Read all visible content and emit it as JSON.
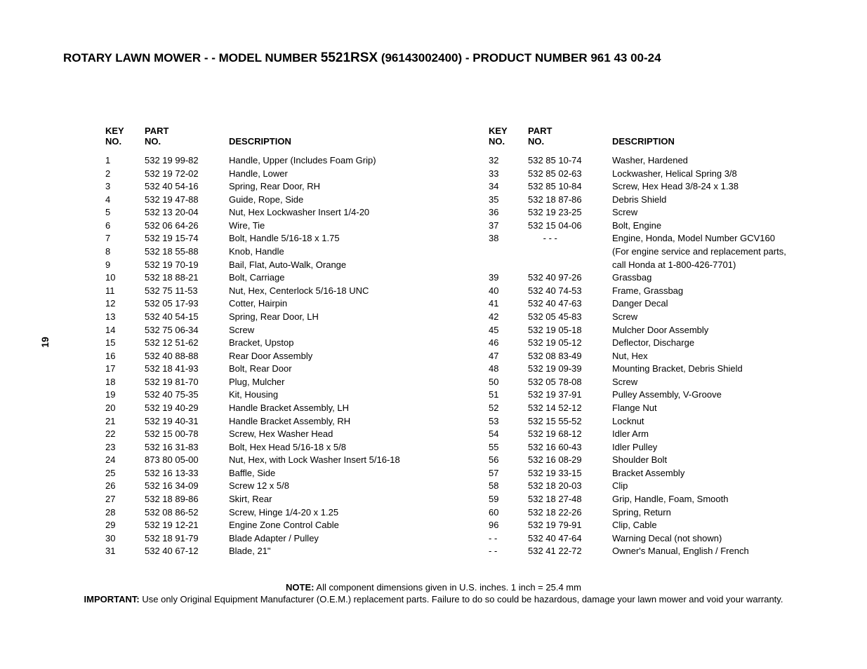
{
  "title": {
    "prefix": "ROTARY LAWN MOWER - - MODEL NUMBER ",
    "model": "5521RSX",
    "suffix": "  (96143002400) - PRODUCT NUMBER 961 43 00-24"
  },
  "page_number": "19",
  "headers": {
    "key_l1": "KEY",
    "key_l2": "NO.",
    "part_l1": "PART",
    "part_l2": "NO.",
    "desc": "DESCRIPTION"
  },
  "left_rows": [
    {
      "key": "1",
      "part": "532 19 99-82",
      "desc": "Handle, Upper (Includes Foam Grip)"
    },
    {
      "key": "2",
      "part": "532 19 72-02",
      "desc": "Handle, Lower"
    },
    {
      "key": "3",
      "part": "532 40 54-16",
      "desc": "Spring, Rear Door, RH"
    },
    {
      "key": "4",
      "part": "532 19 47-88",
      "desc": "Guide, Rope, Side"
    },
    {
      "key": "5",
      "part": "532 13 20-04",
      "desc": "Nut, Hex Lockwasher Insert  1/4-20"
    },
    {
      "key": "6",
      "part": "532 06 64-26",
      "desc": "Wire, Tie"
    },
    {
      "key": "7",
      "part": "532 19 15-74",
      "desc": "Bolt, Handle  5/16-18 x 1.75"
    },
    {
      "key": "8",
      "part": "532 18 55-88",
      "desc": "Knob, Handle"
    },
    {
      "key": "9",
      "part": "532 19 70-19",
      "desc": "Bail, Flat, Auto-Walk, Orange"
    },
    {
      "key": "10",
      "part": "532 18 88-21",
      "desc": "Bolt, Carriage"
    },
    {
      "key": "11",
      "part": "532 75 11-53",
      "desc": "Nut, Hex, Centerlock  5/16-18 UNC"
    },
    {
      "key": "12",
      "part": "532 05 17-93",
      "desc": "Cotter, Hairpin"
    },
    {
      "key": "13",
      "part": "532 40 54-15",
      "desc": "Spring, Rear Door, LH"
    },
    {
      "key": "14",
      "part": "532 75 06-34",
      "desc": "Screw"
    },
    {
      "key": "15",
      "part": "532 12 51-62",
      "desc": "Bracket, Upstop"
    },
    {
      "key": "16",
      "part": "532 40 88-88",
      "desc": "Rear Door Assembly"
    },
    {
      "key": "17",
      "part": "532 18 41-93",
      "desc": "Bolt, Rear Door"
    },
    {
      "key": "18",
      "part": "532 19 81-70",
      "desc": "Plug, Mulcher"
    },
    {
      "key": "19",
      "part": "532 40 75-35",
      "desc": "Kit, Housing"
    },
    {
      "key": "20",
      "part": "532 19 40-29",
      "desc": "Handle Bracket Assembly, LH"
    },
    {
      "key": "21",
      "part": "532 19 40-31",
      "desc": "Handle Bracket Assembly, RH"
    },
    {
      "key": "22",
      "part": "532 15 00-78",
      "desc": "Screw, Hex Washer Head"
    },
    {
      "key": "23",
      "part": "532 16 31-83",
      "desc": "Bolt, Hex Head  5/16-18 x 5/8"
    },
    {
      "key": "24",
      "part": "873 80 05-00",
      "desc": "Nut, Hex, with Lock Washer Insert  5/16-18"
    },
    {
      "key": "25",
      "part": "532 16 13-33",
      "desc": "Baffle, Side"
    },
    {
      "key": "26",
      "part": "532 16 34-09",
      "desc": "Screw  12 x 5/8"
    },
    {
      "key": "27",
      "part": "532 18 89-86",
      "desc": "Skirt, Rear"
    },
    {
      "key": "28",
      "part": "532 08 86-52",
      "desc": "Screw, Hinge  1/4-20 x 1.25"
    },
    {
      "key": "29",
      "part": "532 19 12-21",
      "desc": "Engine Zone Control Cable"
    },
    {
      "key": "30",
      "part": "532 18 91-79",
      "desc": "Blade Adapter / Pulley"
    },
    {
      "key": "31",
      "part": "532 40 67-12",
      "desc": "Blade, 21\""
    }
  ],
  "right_rows": [
    {
      "key": "32",
      "part": "532 85 10-74",
      "desc": "Washer, Hardened"
    },
    {
      "key": "33",
      "part": "532 85 02-63",
      "desc": "Lockwasher, Helical Spring  3/8"
    },
    {
      "key": "34",
      "part": "532 85 10-84",
      "desc": "Screw, Hex Head  3/8-24 x 1.38"
    },
    {
      "key": "35",
      "part": "532 18 87-86",
      "desc": "Debris Shield"
    },
    {
      "key": "36",
      "part": "532 19 23-25",
      "desc": "Screw"
    },
    {
      "key": "37",
      "part": "532 15 04-06",
      "desc": "Bolt, Engine"
    },
    {
      "key": "38",
      "part": "      - - -",
      "desc": "Engine, Honda, Model Number GCV160"
    },
    {
      "key": "",
      "part": "",
      "desc": "(For engine service and replacement parts,"
    },
    {
      "key": "",
      "part": "",
      "desc": "call Honda at 1-800-426-7701)"
    },
    {
      "key": "39",
      "part": "532 40 97-26",
      "desc": "Grassbag"
    },
    {
      "key": "40",
      "part": "532 40 74-53",
      "desc": "Frame, Grassbag"
    },
    {
      "key": "41",
      "part": "532 40 47-63",
      "desc": "Danger Decal"
    },
    {
      "key": "42",
      "part": "532 05 45-83",
      "desc": "Screw"
    },
    {
      "key": "45",
      "part": "532 19 05-18",
      "desc": "Mulcher Door Assembly"
    },
    {
      "key": "46",
      "part": "532 19 05-12",
      "desc": "Deflector, Discharge"
    },
    {
      "key": "47",
      "part": "532 08 83-49",
      "desc": "Nut, Hex"
    },
    {
      "key": "48",
      "part": "532 19 09-39",
      "desc": "Mounting Bracket, Debris Shield"
    },
    {
      "key": "50",
      "part": "532 05 78-08",
      "desc": "Screw"
    },
    {
      "key": "51",
      "part": "532 19 37-91",
      "desc": "Pulley Assembly, V-Groove"
    },
    {
      "key": "52",
      "part": "532 14 52-12",
      "desc": "Flange Nut"
    },
    {
      "key": "53",
      "part": "532 15 55-52",
      "desc": "Locknut"
    },
    {
      "key": "54",
      "part": "532 19 68-12",
      "desc": "Idler Arm"
    },
    {
      "key": "55",
      "part": "532 16 60-43",
      "desc": "Idler Pulley"
    },
    {
      "key": "56",
      "part": "532 16 08-29",
      "desc": "Shoulder Bolt"
    },
    {
      "key": "57",
      "part": "532 19 33-15",
      "desc": "Bracket Assembly"
    },
    {
      "key": "58",
      "part": "532 18 20-03",
      "desc": "Clip"
    },
    {
      "key": "59",
      "part": "532 18 27-48",
      "desc": "Grip, Handle, Foam, Smooth"
    },
    {
      "key": "60",
      "part": "532 18 22-26",
      "desc": "Spring, Return"
    },
    {
      "key": "96",
      "part": "532 19 79-91",
      "desc": "Clip, Cable"
    },
    {
      "key": "- -",
      "part": "532 40 47-64",
      "desc": "Warning Decal (not shown)"
    },
    {
      "key": "- -",
      "part": "532 41 22-72",
      "desc": "Owner's Manual, English / French"
    }
  ],
  "note": {
    "label1": "NOTE:",
    "text1": " All component dimensions given in U.S. inches.  1 inch = 25.4 mm",
    "label2": "IMPORTANT:",
    "text2": " Use only Original Equipment Manufacturer (O.E.M.) replacement parts.  Failure to do so could be hazardous, damage your lawn mower and void your warranty."
  }
}
